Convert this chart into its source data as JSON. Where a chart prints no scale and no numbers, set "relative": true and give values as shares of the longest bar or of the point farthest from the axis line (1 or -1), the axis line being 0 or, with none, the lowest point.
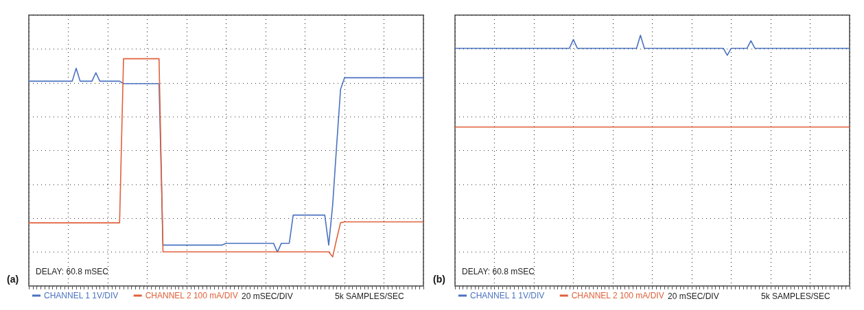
{
  "chart_data": [
    {
      "type": "line",
      "title": "(a)",
      "relative": true,
      "grid": true,
      "legend": "bottom left",
      "line_style": "solid",
      "annotations": [
        "DELAY: 60.8 mSEC",
        "20 mSEC/DIV",
        "5k SAMPLES/SEC"
      ],
      "categories": [
        null,
        null,
        null,
        null,
        null,
        null,
        null,
        null,
        null,
        null,
        null,
        null,
        null,
        null,
        null,
        null,
        null,
        null,
        null,
        null,
        null,
        null,
        null,
        null,
        null,
        null,
        null,
        null,
        null,
        null,
        null,
        null,
        null,
        null,
        null,
        null,
        null,
        null,
        null,
        null,
        null,
        null,
        null,
        null,
        null,
        null,
        null,
        null,
        null,
        null,
        null,
        null,
        null,
        null,
        null,
        null,
        null,
        null,
        null,
        null,
        null,
        null,
        null,
        null,
        null,
        null,
        null,
        null,
        null,
        null,
        null,
        null,
        null,
        null,
        null,
        null,
        null,
        null,
        null,
        null,
        null,
        null,
        null,
        null,
        null,
        null,
        null,
        null,
        null,
        null,
        null,
        null,
        null,
        null,
        null,
        null,
        null,
        null,
        null,
        null,
        null
      ],
      "series": [
        {
          "name": "CHANNEL 1 1V/DIV",
          "color": "#4a72c0",
          "values": [
            0.901,
            0.901,
            0.901,
            0.901,
            0.901,
            0.901,
            0.901,
            0.901,
            0.901,
            0.901,
            0.901,
            0.901,
            0.958,
            0.901,
            0.901,
            0.901,
            0.901,
            0.938,
            0.901,
            0.901,
            0.901,
            0.901,
            0.901,
            0.901,
            0.89,
            0.89,
            0.89,
            0.89,
            0.89,
            0.89,
            0.89,
            0.89,
            0.89,
            0.89,
            0.18,
            0.18,
            0.18,
            0.18,
            0.18,
            0.18,
            0.18,
            0.18,
            0.18,
            0.18,
            0.18,
            0.18,
            0.18,
            0.18,
            0.18,
            0.18,
            0.188,
            0.188,
            0.188,
            0.188,
            0.188,
            0.188,
            0.188,
            0.188,
            0.188,
            0.188,
            0.188,
            0.188,
            0.188,
            0.149,
            0.188,
            0.188,
            0.188,
            0.312,
            0.312,
            0.312,
            0.312,
            0.312,
            0.312,
            0.312,
            0.312,
            0.312,
            0.18,
            0.357,
            0.616,
            0.865,
            0.916,
            0.916,
            0.916,
            0.916,
            0.916,
            0.916,
            0.916,
            0.916,
            0.916,
            0.916,
            0.916,
            0.916,
            0.916,
            0.916,
            0.916,
            0.916,
            0.916,
            0.916,
            0.916,
            0.916,
            0.916
          ]
        },
        {
          "name": "CHANNEL 2 100 mA/DIV",
          "color": "#e0603a",
          "values": [
            0.278,
            0.278,
            0.278,
            0.278,
            0.278,
            0.278,
            0.278,
            0.278,
            0.278,
            0.278,
            0.278,
            0.278,
            0.278,
            0.278,
            0.278,
            0.278,
            0.278,
            0.278,
            0.278,
            0.278,
            0.278,
            0.278,
            0.278,
            0.278,
            1,
            1,
            1,
            1,
            1,
            1,
            1,
            1,
            1,
            1,
            0.15,
            0.15,
            0.15,
            0.15,
            0.15,
            0.15,
            0.15,
            0.15,
            0.15,
            0.15,
            0.15,
            0.15,
            0.15,
            0.15,
            0.15,
            0.15,
            0.15,
            0.15,
            0.15,
            0.15,
            0.15,
            0.15,
            0.15,
            0.15,
            0.15,
            0.15,
            0.15,
            0.15,
            0.15,
            0.15,
            0.15,
            0.15,
            0.15,
            0.15,
            0.15,
            0.15,
            0.15,
            0.15,
            0.15,
            0.15,
            0.15,
            0.15,
            0.15,
            0.128,
            0.206,
            0.278,
            0.282,
            0.282,
            0.282,
            0.282,
            0.282,
            0.282,
            0.282,
            0.282,
            0.282,
            0.282,
            0.282,
            0.282,
            0.282,
            0.282,
            0.282,
            0.282,
            0.282,
            0.282,
            0.282,
            0.282,
            0.282
          ]
        }
      ]
    },
    {
      "type": "line",
      "title": "(b)",
      "relative": true,
      "grid": true,
      "legend": "bottom left",
      "line_style": "solid",
      "annotations": [
        "DELAY: 60.8 mSEC",
        "20 mSEC/DIV",
        "5k SAMPLES/SEC"
      ],
      "categories": [
        null,
        null,
        null,
        null,
        null,
        null,
        null,
        null,
        null,
        null,
        null,
        null,
        null,
        null,
        null,
        null,
        null,
        null,
        null,
        null,
        null,
        null,
        null,
        null,
        null,
        null,
        null,
        null,
        null,
        null,
        null,
        null,
        null,
        null,
        null,
        null,
        null,
        null,
        null,
        null,
        null,
        null,
        null,
        null,
        null,
        null,
        null,
        null,
        null,
        null,
        null,
        null,
        null,
        null,
        null,
        null,
        null,
        null,
        null,
        null,
        null,
        null,
        null,
        null,
        null,
        null,
        null,
        null,
        null,
        null,
        null,
        null,
        null,
        null,
        null,
        null,
        null,
        null,
        null,
        null,
        null,
        null,
        null,
        null,
        null,
        null,
        null,
        null,
        null,
        null,
        null,
        null,
        null,
        null,
        null,
        null,
        null,
        null,
        null,
        null,
        null
      ],
      "series": [
        {
          "name": "CHANNEL 1 1V/DIV",
          "color": "#4a72c0",
          "values": [
            0.948,
            0.948,
            0.948,
            0.948,
            0.948,
            0.948,
            0.948,
            0.948,
            0.948,
            0.948,
            0.948,
            0.948,
            0.948,
            0.948,
            0.948,
            0.948,
            0.948,
            0.948,
            0.948,
            0.948,
            0.948,
            0.948,
            0.948,
            0.948,
            0.948,
            0.948,
            0.948,
            0.948,
            0.948,
            0.948,
            0.983,
            0.948,
            0.948,
            0.948,
            0.948,
            0.948,
            0.948,
            0.948,
            0.948,
            0.948,
            0.948,
            0.948,
            0.948,
            0.948,
            0.948,
            0.948,
            0.948,
            1,
            0.948,
            0.948,
            0.948,
            0.948,
            0.948,
            0.948,
            0.948,
            0.948,
            0.948,
            0.948,
            0.948,
            0.948,
            0.948,
            0.948,
            0.948,
            0.948,
            0.948,
            0.948,
            0.948,
            0.948,
            0.948,
            0.92,
            0.948,
            0.948,
            0.948,
            0.948,
            0.948,
            0.978,
            0.948,
            0.948,
            0.948,
            0.948,
            0.948,
            0.948,
            0.948,
            0.948,
            0.948,
            0.948,
            0.948,
            0.948,
            0.948,
            0.948,
            0.948,
            0.948,
            0.948,
            0.948,
            0.948,
            0.948,
            0.948,
            0.948,
            0.948,
            0.948,
            0.948
          ]
        },
        {
          "name": "CHANNEL 2 100 mA/DIV",
          "color": "#e0603a",
          "values": [
            0.634,
            0.634,
            0.634,
            0.634,
            0.634,
            0.634,
            0.634,
            0.634,
            0.634,
            0.634,
            0.634,
            0.634,
            0.634,
            0.634,
            0.634,
            0.634,
            0.634,
            0.634,
            0.634,
            0.634,
            0.634,
            0.634,
            0.634,
            0.634,
            0.634,
            0.634,
            0.634,
            0.634,
            0.634,
            0.634,
            0.634,
            0.634,
            0.634,
            0.634,
            0.634,
            0.634,
            0.634,
            0.634,
            0.634,
            0.634,
            0.634,
            0.634,
            0.634,
            0.634,
            0.634,
            0.634,
            0.634,
            0.634,
            0.634,
            0.634,
            0.634,
            0.634,
            0.634,
            0.634,
            0.634,
            0.634,
            0.634,
            0.634,
            0.634,
            0.634,
            0.634,
            0.634,
            0.634,
            0.634,
            0.634,
            0.634,
            0.634,
            0.634,
            0.634,
            0.634,
            0.634,
            0.634,
            0.634,
            0.634,
            0.634,
            0.634,
            0.634,
            0.634,
            0.634,
            0.634,
            0.634,
            0.634,
            0.634,
            0.634,
            0.634,
            0.634,
            0.634,
            0.634,
            0.634,
            0.634,
            0.634,
            0.634,
            0.634,
            0.634,
            0.634,
            0.634,
            0.634,
            0.634,
            0.634,
            0.634,
            0.634
          ]
        }
      ]
    }
  ]
}
